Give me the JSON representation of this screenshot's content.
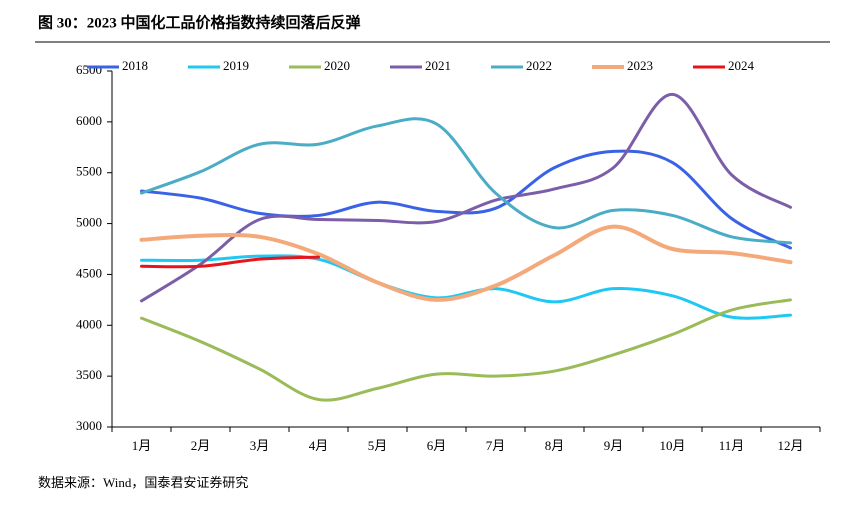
{
  "chart_data": {
    "type": "line",
    "title": "图 30：2023 中国化工品价格指数持续回落后反弹",
    "source": "数据来源：Wind，国泰君安证券研究",
    "categories": [
      "1月",
      "2月",
      "3月",
      "4月",
      "5月",
      "6月",
      "7月",
      "8月",
      "9月",
      "10月",
      "11月",
      "12月"
    ],
    "series": [
      {
        "name": "2018",
        "color": "#3a62e6",
        "values": [
          5320,
          5250,
          5100,
          5080,
          5210,
          5120,
          5150,
          5550,
          5710,
          5600,
          5050,
          4760
        ]
      },
      {
        "name": "2019",
        "color": "#1ec8f2",
        "values": [
          4640,
          4640,
          4680,
          4650,
          4420,
          4270,
          4360,
          4230,
          4360,
          4290,
          4080,
          4100
        ]
      },
      {
        "name": "2020",
        "color": "#9bbb59",
        "values": [
          4070,
          3840,
          3570,
          3270,
          3380,
          3520,
          3500,
          3550,
          3710,
          3910,
          4150,
          4250
        ]
      },
      {
        "name": "2021",
        "color": "#7b5ea7",
        "values": [
          4240,
          4600,
          5040,
          5040,
          5030,
          5020,
          5230,
          5340,
          5550,
          6270,
          5480,
          5160
        ]
      },
      {
        "name": "2022",
        "color": "#4bacc6",
        "values": [
          5300,
          5510,
          5780,
          5780,
          5960,
          5980,
          5300,
          4960,
          5130,
          5080,
          4870,
          4810
        ]
      },
      {
        "name": "2023",
        "color": "#f4a97a",
        "values": [
          4840,
          4880,
          4870,
          4700,
          4420,
          4250,
          4390,
          4690,
          4970,
          4750,
          4710,
          4620
        ]
      },
      {
        "name": "2024",
        "color": "#e8141b",
        "values": [
          4580,
          4580,
          4650,
          4670,
          null,
          null,
          null,
          null,
          null,
          null,
          null,
          null
        ]
      }
    ],
    "ylim": [
      3000,
      6500
    ],
    "yticks": [
      3000,
      3500,
      4000,
      4500,
      5000,
      5500,
      6000,
      6500
    ],
    "grid": false,
    "legend": "top"
  }
}
